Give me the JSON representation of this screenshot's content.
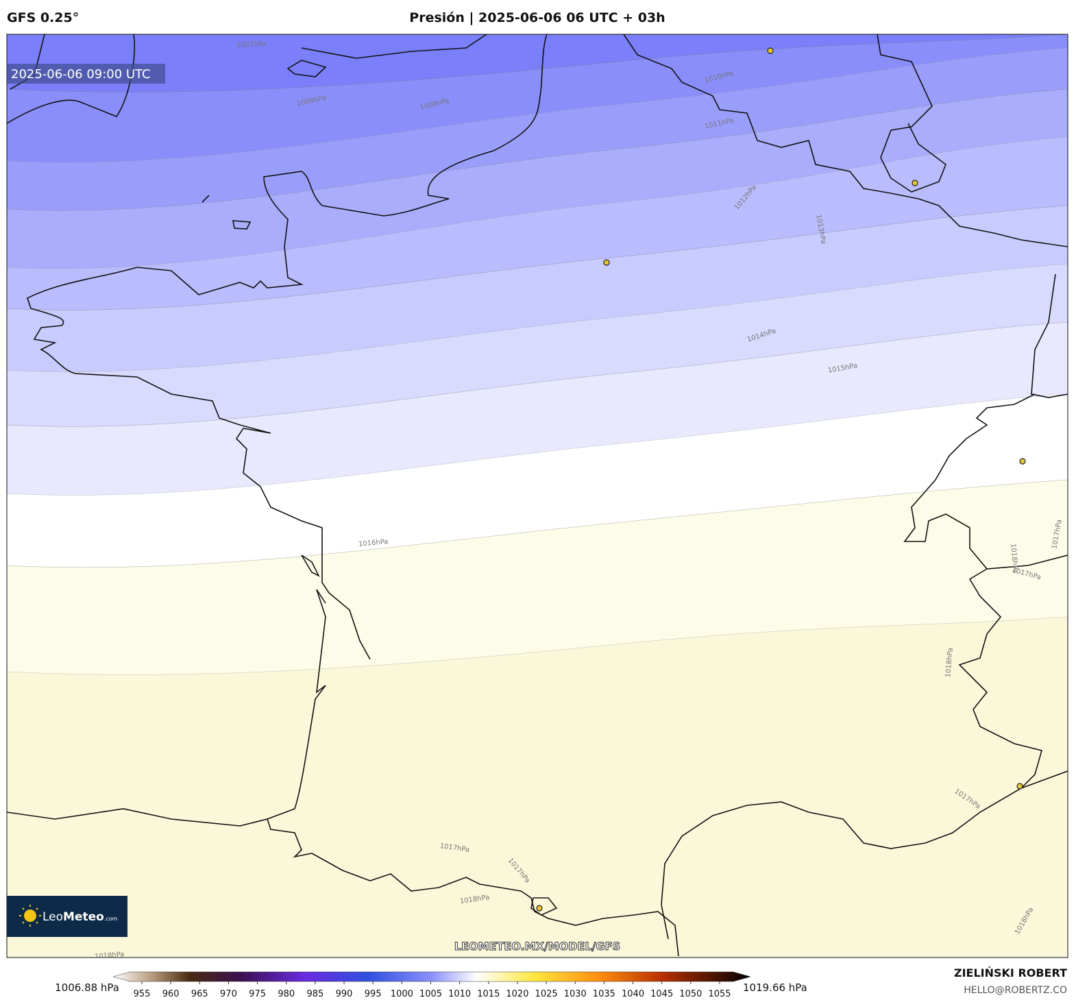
{
  "header": {
    "model": "GFS 0.25°",
    "title": "Presión | 2025-06-06 06 UTC + 03h"
  },
  "map": {
    "valid_time": "2025-06-06 09:00 UTC",
    "contour_labels": [
      "1007hPa",
      "1008hPa",
      "1009hPa",
      "1010hPa",
      "1011hPa",
      "1012hPa",
      "1013hPa",
      "1014hPa",
      "1015hPa",
      "1016hPa",
      "1017hPa",
      "1017hPa",
      "1017hPa",
      "1017hPa",
      "1017hPa",
      "1018hPa",
      "1018hPa",
      "1018hPa",
      "1018hPa",
      "1018hPa"
    ],
    "watermark": "LEOMETEO.MX/MODEL/GFS",
    "logo": {
      "leo": "Leo",
      "meteo": "Meteo",
      "domain": ".com"
    }
  },
  "colorbar": {
    "min_label": "1006.88 hPa",
    "max_label": "1019.66 hPa",
    "ticks": [
      955,
      960,
      965,
      970,
      975,
      980,
      985,
      990,
      995,
      1000,
      1005,
      1010,
      1015,
      1020,
      1025,
      1030,
      1035,
      1040,
      1045,
      1050,
      1055
    ]
  },
  "credit": {
    "name": "ZIELIŃSKI ROBERT",
    "email": "HELLO@ROBERTZ.CO"
  }
}
